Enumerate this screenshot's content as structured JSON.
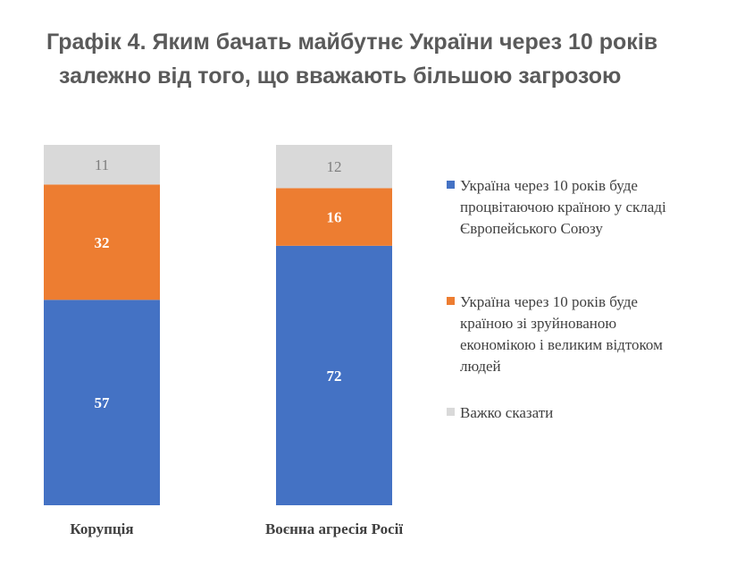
{
  "title": {
    "line1": "Графік 4. Яким бачать майбутнє України через 10 років",
    "line2": "залежно від того, що вважають більшою загрозою"
  },
  "chart_data": {
    "type": "bar",
    "stacked": true,
    "categories": [
      "Корупція",
      "Воєнна агресія Росії"
    ],
    "series": [
      {
        "name": "Україна через 10 років буде процвітаючою країною у складі Європейського Союзу",
        "color": "#4472C4",
        "values": [
          57,
          72
        ]
      },
      {
        "name": "Україна через 10 років буде країною зі зруйнованою економікою і великим відтоком людей",
        "color": "#ED7D31",
        "values": [
          32,
          16
        ]
      },
      {
        "name": "Важко сказати",
        "color": "#D9D9D9",
        "values": [
          11,
          12
        ]
      }
    ],
    "ylim": [
      0,
      100
    ],
    "legend_position": "right",
    "grid": false
  }
}
